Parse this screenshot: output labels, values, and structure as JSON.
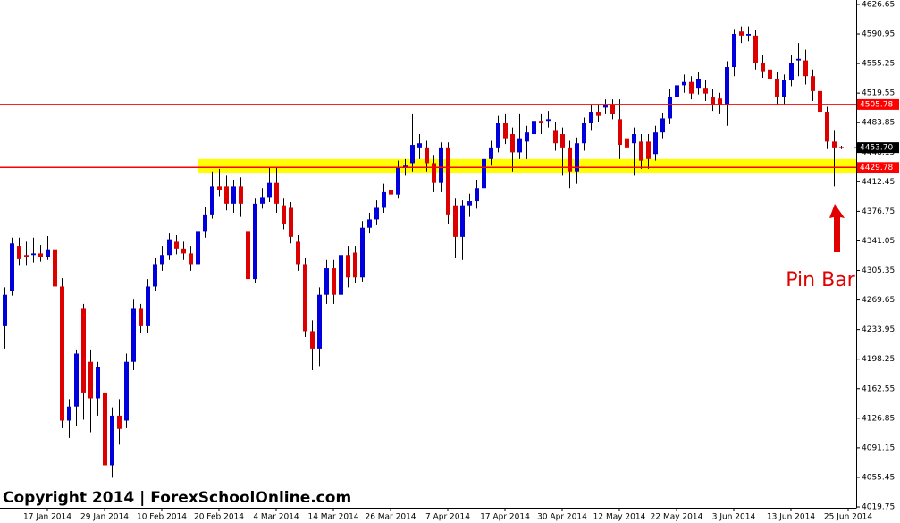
{
  "chart_data": {
    "type": "candlestick",
    "candles": {
      "open": [
        4238,
        4281,
        4335,
        4324,
        4324,
        4326,
        4322,
        4330,
        4286,
        4124,
        4141,
        4259,
        4195,
        4151,
        4157,
        4070,
        4130,
        4124,
        4195,
        4259,
        4238,
        4286,
        4313,
        4324,
        4340,
        4332,
        4326,
        4313,
        4353,
        4373,
        4407,
        4407,
        4386,
        4407,
        4353,
        4295,
        4386,
        4394,
        4411,
        4384,
        4381,
        4340,
        4313,
        4232,
        4211,
        4276,
        4308,
        4276,
        4324,
        4327,
        4297,
        4357,
        4367,
        4381,
        4403,
        4397,
        4429,
        4435,
        4454,
        4454,
        4435,
        4411,
        4454,
        4384,
        4346,
        4384,
        4389,
        4405,
        4440,
        4454,
        4483,
        4470,
        4448,
        4461,
        4470,
        4486,
        4486,
        4475,
        4470,
        4454,
        4425,
        4459,
        4483,
        4497,
        4502,
        4505,
        4488,
        4465,
        4459,
        4461,
        4461,
        4446,
        4472,
        4489,
        4515,
        4529,
        4533,
        4526,
        4526,
        4515,
        4513,
        4505,
        4551,
        4594,
        4589,
        4589,
        4556,
        4548,
        4537,
        4515,
        4535,
        4559,
        4559,
        4540,
        4522,
        4497,
        4461,
        4454.5
      ],
      "high": [
        4285,
        4345,
        4345,
        4340,
        4345,
        4336,
        4347,
        4336,
        4296,
        4150,
        4210,
        4265,
        4210,
        4195,
        4175,
        4140,
        4150,
        4205,
        4270,
        4265,
        4295,
        4320,
        4335,
        4350,
        4348,
        4340,
        4335,
        4360,
        4382,
        4425,
        4428,
        4420,
        4415,
        4418,
        4360,
        4392,
        4405,
        4430,
        4430,
        4392,
        4388,
        4348,
        4320,
        4245,
        4285,
        4318,
        4318,
        4332,
        4335,
        4335,
        4365,
        4375,
        4390,
        4410,
        4412,
        4438,
        4440,
        4495,
        4470,
        4462,
        4445,
        4460,
        4460,
        4392,
        4390,
        4398,
        4415,
        4448,
        4462,
        4492,
        4495,
        4478,
        4495,
        4480,
        4502,
        4495,
        4498,
        4485,
        4478,
        4462,
        4466,
        4490,
        4505,
        4505,
        4512,
        4512,
        4512,
        4472,
        4478,
        4470,
        4470,
        4480,
        4496,
        4525,
        4535,
        4542,
        4540,
        4545,
        4535,
        4525,
        4520,
        4558,
        4597,
        4600,
        4600,
        4596,
        4565,
        4556,
        4545,
        4542,
        4565,
        4580,
        4572,
        4548,
        4530,
        4503,
        4475,
        4456
      ],
      "low": [
        4211,
        4275,
        4312,
        4312,
        4315,
        4316,
        4318,
        4280,
        4115,
        4103,
        4118,
        4125,
        4110,
        4130,
        4060,
        4055,
        4095,
        4115,
        4185,
        4230,
        4230,
        4280,
        4305,
        4318,
        4325,
        4318,
        4305,
        4308,
        4345,
        4368,
        4395,
        4378,
        4375,
        4370,
        4280,
        4290,
        4380,
        4388,
        4375,
        4355,
        4338,
        4305,
        4225,
        4185,
        4190,
        4265,
        4265,
        4265,
        4285,
        4290,
        4292,
        4350,
        4360,
        4375,
        4390,
        4392,
        4420,
        4425,
        4440,
        4425,
        4400,
        4400,
        4362,
        4320,
        4318,
        4370,
        4380,
        4400,
        4432,
        4448,
        4458,
        4425,
        4440,
        4440,
        4462,
        4470,
        4478,
        4450,
        4420,
        4405,
        4410,
        4450,
        4475,
        4485,
        4495,
        4488,
        4440,
        4420,
        4420,
        4428,
        4428,
        4438,
        4465,
        4482,
        4508,
        4520,
        4512,
        4518,
        4510,
        4498,
        4495,
        4480,
        4540,
        4580,
        4582,
        4548,
        4538,
        4515,
        4505,
        4505,
        4528,
        4540,
        4530,
        4510,
        4490,
        4452,
        4407,
        4452
      ],
      "close": [
        4276,
        4338,
        4319,
        4322,
        4326,
        4322,
        4330,
        4286,
        4124,
        4141,
        4205,
        4157,
        4151,
        4189,
        4070,
        4130,
        4114,
        4195,
        4259,
        4238,
        4286,
        4313,
        4324,
        4343,
        4332,
        4326,
        4313,
        4353,
        4373,
        4407,
        4403,
        4386,
        4407,
        4386,
        4295,
        4386,
        4394,
        4411,
        4386,
        4362,
        4346,
        4313,
        4232,
        4211,
        4276,
        4308,
        4276,
        4324,
        4297,
        4297,
        4357,
        4367,
        4381,
        4400,
        4397,
        4429,
        4432,
        4457,
        4459,
        4435,
        4411,
        4454,
        4373,
        4346,
        4384,
        4389,
        4405,
        4440,
        4454,
        4483,
        4465,
        4448,
        4465,
        4472,
        4486,
        4483,
        4488,
        4459,
        4454,
        4425,
        4459,
        4483,
        4497,
        4492,
        4505,
        4494,
        4457,
        4454,
        4470,
        4438,
        4440,
        4472,
        4489,
        4515,
        4529,
        4533,
        4519,
        4537,
        4519,
        4505,
        4505,
        4551,
        4591,
        4589,
        4591,
        4556,
        4546,
        4537,
        4515,
        4535,
        4556,
        4561,
        4540,
        4522,
        4497,
        4461,
        4454,
        4453.7
      ]
    },
    "up_color": "#0000dd",
    "down_color": "#dd0000",
    "xlim": [
      -0.625,
      119.125
    ],
    "xticks": [
      {
        "value": 6,
        "label": "17 Jan 2014"
      },
      {
        "value": 14,
        "label": "29 Jan 2014"
      },
      {
        "value": 22,
        "label": "10 Feb 2014"
      },
      {
        "value": 30,
        "label": "20 Feb 2014"
      },
      {
        "value": 38,
        "label": "4 Mar 2014"
      },
      {
        "value": 46,
        "label": "14 Mar 2014"
      },
      {
        "value": 54,
        "label": "26 Mar 2014"
      },
      {
        "value": 62,
        "label": "7 Apr 2014"
      },
      {
        "value": 70,
        "label": "17 Apr 2014"
      },
      {
        "value": 78,
        "label": "30 Apr 2014"
      },
      {
        "value": 86,
        "label": "12 May 2014"
      },
      {
        "value": 94,
        "label": "22 May 2014"
      },
      {
        "value": 102,
        "label": "3 Jun 2014"
      },
      {
        "value": 110,
        "label": "13 Jun 2014"
      },
      {
        "value": 118,
        "label": "25 Jun 2014"
      }
    ],
    "ylim": [
      4018.7,
      4632.0
    ],
    "yticks": [
      4626.65,
      4590.95,
      4555.25,
      4519.55,
      4483.85,
      4448.15,
      4412.45,
      4376.75,
      4341.05,
      4305.35,
      4269.65,
      4233.95,
      4198.25,
      4162.55,
      4126.85,
      4091.15,
      4055.45,
      4019.75
    ],
    "zone": {
      "values": [
        4423,
        4440
      ],
      "color": "#ffff00"
    },
    "hlines": [
      {
        "value": 4505.78,
        "label": "4505.78",
        "color": "#ff0000"
      },
      {
        "value": 4429.78,
        "label": "4429.78",
        "color": "#ff0000"
      }
    ],
    "price_label": {
      "value": 4453.7,
      "label": "4453.70"
    },
    "annotation": "Pin Bar",
    "copyright": "Copyright 2014 | ForexSchoolOnline.com"
  }
}
